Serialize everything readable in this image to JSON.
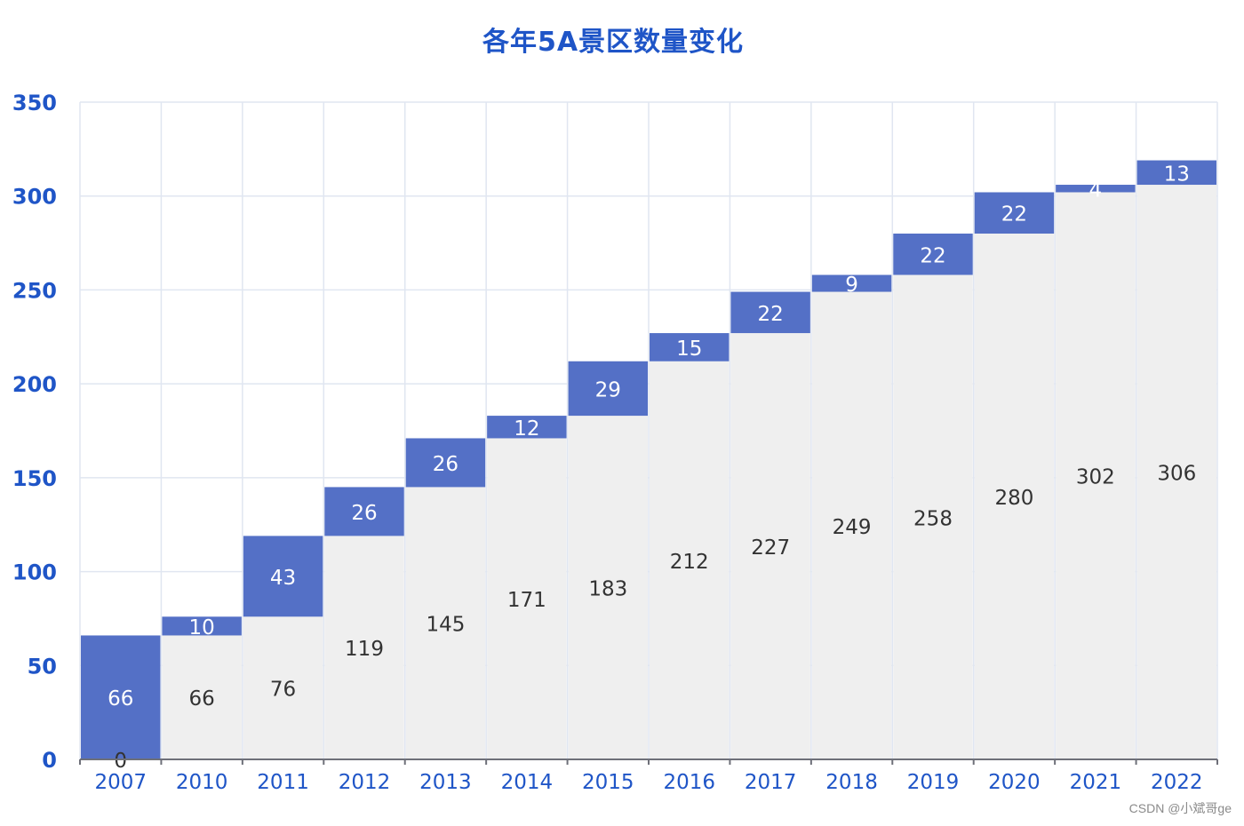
{
  "chart_data": {
    "type": "bar",
    "title": "各年5A景区数量变化",
    "xlabel": "",
    "ylabel": "",
    "ylim": [
      0,
      350
    ],
    "yticks": [
      0,
      50,
      100,
      150,
      200,
      250,
      300,
      350
    ],
    "grid": true,
    "legend": "none",
    "categories": [
      "2007",
      "2010",
      "2011",
      "2012",
      "2013",
      "2014",
      "2015",
      "2016",
      "2017",
      "2018",
      "2019",
      "2020",
      "2021",
      "2022"
    ],
    "series": [
      {
        "role": "base",
        "values": [
          0,
          66,
          76,
          119,
          145,
          171,
          183,
          212,
          227,
          249,
          258,
          280,
          302,
          306
        ],
        "color": "#efefef",
        "label_color": "#333333"
      },
      {
        "role": "increase",
        "values": [
          66,
          10,
          43,
          26,
          26,
          12,
          29,
          15,
          22,
          9,
          22,
          22,
          4,
          13
        ],
        "color": "#5470c6",
        "label_color": "#ffffff"
      }
    ],
    "axis_color": "#1f55c7",
    "grid_color": "#e0e6f1"
  },
  "watermark": "CSDN @小斌哥ge"
}
